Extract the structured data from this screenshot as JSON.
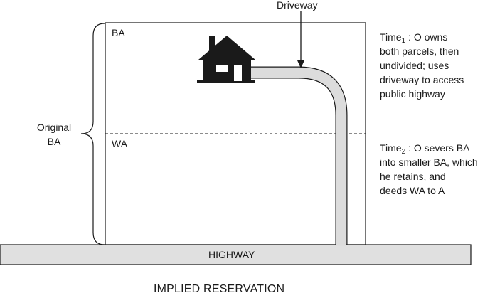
{
  "labels": {
    "driveway": "Driveway",
    "ba": "BA",
    "wa": "WA",
    "original_line1": "Original",
    "original_line2": "BA",
    "highway": "HIGHWAY",
    "title": "IMPLIED RESERVATION"
  },
  "notes": {
    "time1": {
      "prefix": "Time",
      "subscript": "1",
      "line1_rest": " : O owns",
      "line2": "both parcels, then",
      "line3": "undivided; uses",
      "line4": "driveway to access",
      "line5": "public highway"
    },
    "time2": {
      "prefix": "Time",
      "subscript": "2",
      "line1_rest": " : O severs BA",
      "line2": "into smaller BA, which",
      "line3": "he retains, and",
      "line4": "deeds WA to A"
    }
  },
  "colors": {
    "ink": "#1a1a1a",
    "highway_fill": "#e0e0e0",
    "driveway_fill": "#dcdcdc",
    "background": "#ffffff"
  },
  "icons": {
    "house": "house-icon",
    "arrow": "arrow-down-icon",
    "brace": "curly-brace"
  }
}
